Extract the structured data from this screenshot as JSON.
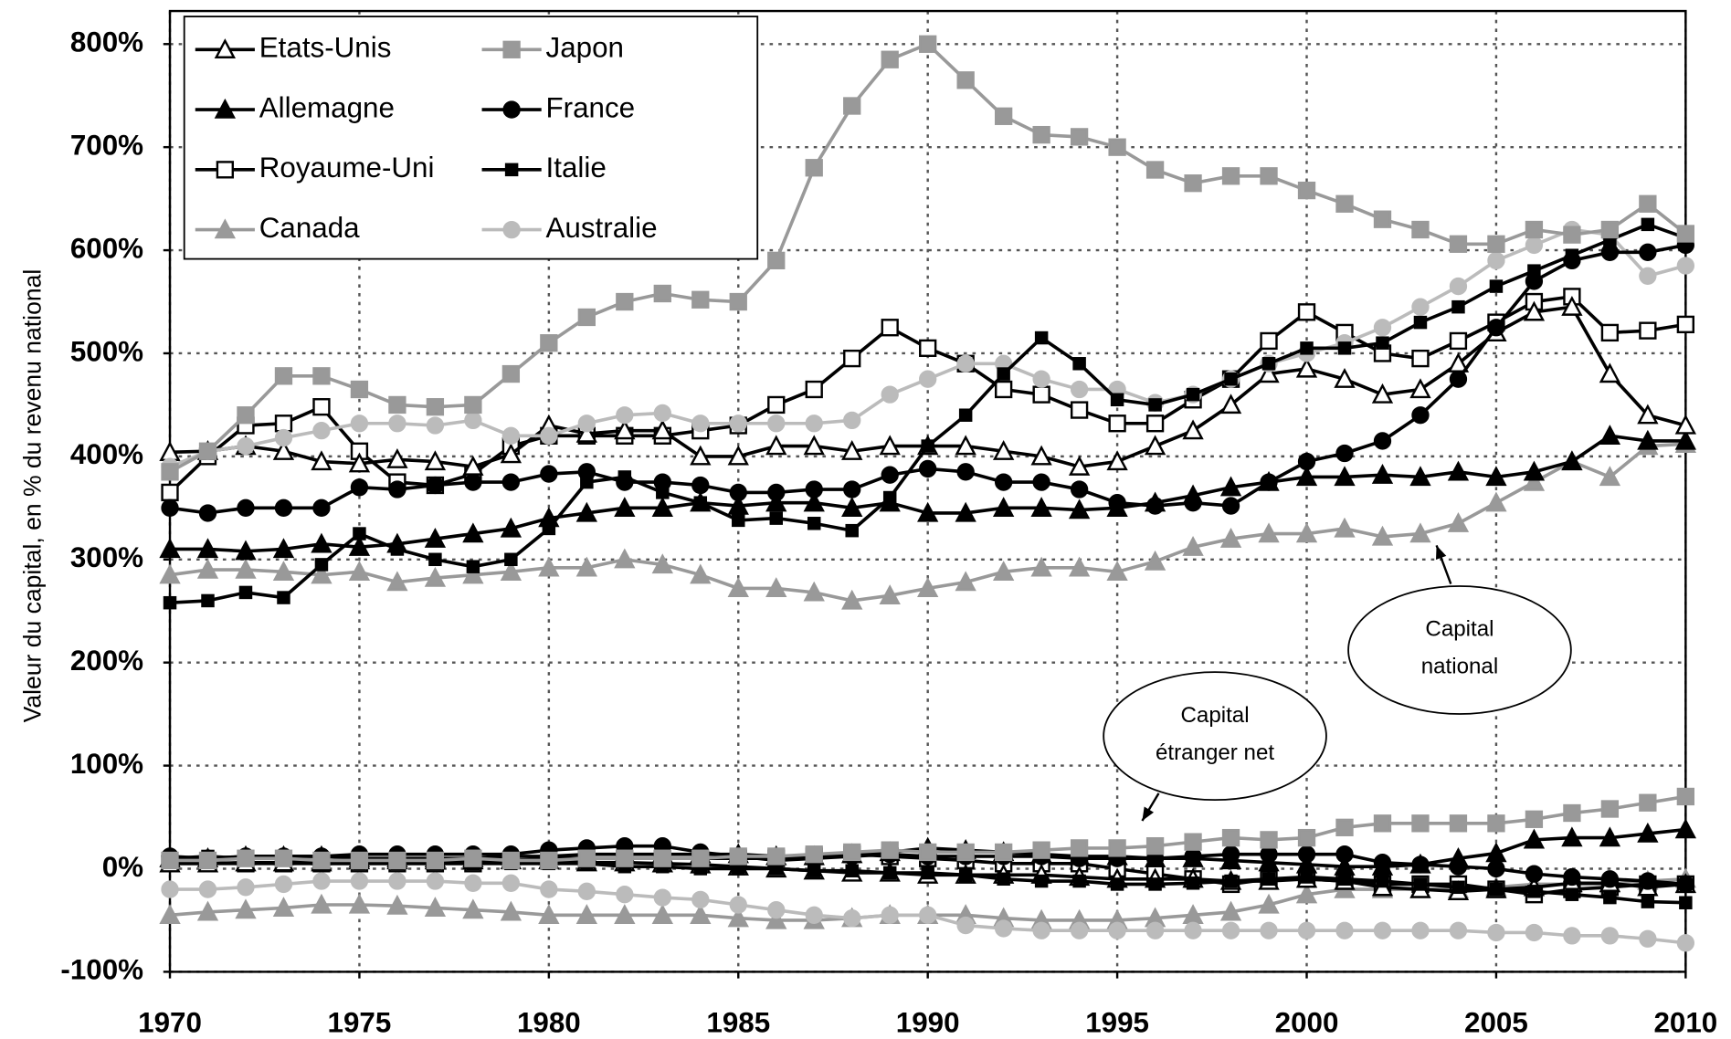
{
  "chart_data": {
    "type": "line",
    "y_label": "Valeur du capital, en % du revenu national",
    "x": [
      1970,
      1971,
      1972,
      1973,
      1974,
      1975,
      1976,
      1977,
      1978,
      1979,
      1980,
      1981,
      1982,
      1983,
      1984,
      1985,
      1986,
      1987,
      1988,
      1989,
      1990,
      1991,
      1992,
      1993,
      1994,
      1995,
      1996,
      1997,
      1998,
      1999,
      2000,
      2001,
      2002,
      2003,
      2004,
      2005,
      2006,
      2007,
      2008,
      2009,
      2010
    ],
    "xlim": [
      1970,
      2010
    ],
    "xticks": [
      1970,
      1975,
      1980,
      1985,
      1990,
      1995,
      2000,
      2005,
      2010
    ],
    "ylim": [
      -100,
      800
    ],
    "yticks": [
      {
        "value": -100,
        "label": "-100%"
      },
      {
        "value": 0,
        "label": "0%"
      },
      {
        "value": 100,
        "label": "100%"
      },
      {
        "value": 200,
        "label": "200%"
      },
      {
        "value": 300,
        "label": "300%"
      },
      {
        "value": 400,
        "label": "400%"
      },
      {
        "value": 500,
        "label": "500%"
      },
      {
        "value": 600,
        "label": "600%"
      },
      {
        "value": 700,
        "label": "700%"
      },
      {
        "value": 800,
        "label": "800%"
      }
    ],
    "grid": true,
    "legend": "top-left",
    "series": [
      {
        "name": "Etats-Unis",
        "color": "#000000",
        "marker": "triangle",
        "fill": "#ffffff",
        "values": [
          404,
          405,
          410,
          405,
          395,
          393,
          397,
          395,
          390,
          402,
          430,
          422,
          425,
          425,
          400,
          400,
          410,
          410,
          405,
          410,
          410,
          410,
          405,
          400,
          390,
          395,
          410,
          425,
          450,
          480,
          485,
          475,
          460,
          465,
          490,
          520,
          540,
          545,
          480,
          440,
          430
        ],
        "foreign_values": [
          5,
          5,
          6,
          6,
          6,
          8,
          8,
          8,
          8,
          8,
          8,
          6,
          6,
          5,
          4,
          2,
          0,
          -2,
          -4,
          -4,
          -6,
          -6,
          -6,
          -6,
          -8,
          -10,
          -10,
          -10,
          -12,
          -12,
          -10,
          -12,
          -18,
          -20,
          -22,
          -20,
          -18,
          -14,
          -14,
          -18,
          -15
        ]
      },
      {
        "name": "Allemagne",
        "color": "#000000",
        "marker": "triangle",
        "fill": "#000000",
        "values": [
          310,
          310,
          308,
          310,
          315,
          312,
          315,
          320,
          325,
          330,
          340,
          345,
          350,
          350,
          355,
          352,
          355,
          355,
          350,
          355,
          345,
          345,
          350,
          350,
          348,
          350,
          355,
          362,
          370,
          375,
          380,
          380,
          382,
          380,
          385,
          380,
          385,
          395,
          420,
          415,
          415
        ],
        "foreign_values": [
          10,
          10,
          12,
          12,
          12,
          10,
          10,
          10,
          10,
          12,
          12,
          14,
          14,
          14,
          14,
          14,
          12,
          12,
          14,
          16,
          20,
          18,
          16,
          14,
          12,
          12,
          10,
          10,
          8,
          6,
          4,
          2,
          2,
          4,
          10,
          15,
          28,
          30,
          30,
          34,
          38
        ]
      },
      {
        "name": "Royaume-Uni",
        "color": "#000000",
        "marker": "square",
        "fill": "#ffffff",
        "values": [
          365,
          400,
          430,
          432,
          448,
          405,
          375,
          372,
          383,
          410,
          420,
          420,
          420,
          420,
          425,
          430,
          450,
          465,
          495,
          525,
          505,
          490,
          465,
          460,
          445,
          432,
          432,
          455,
          475,
          512,
          540,
          520,
          500,
          495,
          512,
          530,
          550,
          555,
          520,
          522,
          528
        ],
        "foreign_values": [
          5,
          5,
          5,
          5,
          5,
          5,
          5,
          5,
          5,
          8,
          10,
          10,
          10,
          10,
          10,
          10,
          10,
          12,
          14,
          12,
          10,
          8,
          5,
          5,
          5,
          0,
          -5,
          -10,
          -15,
          -10,
          -10,
          -12,
          -15,
          -15,
          -15,
          -20,
          -25,
          -20,
          -18,
          -15,
          -15
        ]
      },
      {
        "name": "Canada",
        "color": "#999999",
        "marker": "triangle",
        "fill": "#999999",
        "values": [
          285,
          290,
          290,
          288,
          285,
          288,
          278,
          282,
          285,
          288,
          292,
          292,
          300,
          295,
          285,
          272,
          272,
          268,
          260,
          265,
          272,
          278,
          288,
          292,
          292,
          288,
          298,
          312,
          320,
          325,
          325,
          330,
          322,
          325,
          335,
          355,
          375,
          395,
          380,
          410,
          412
        ],
        "foreign_values": [
          -45,
          -42,
          -40,
          -38,
          -35,
          -35,
          -36,
          -38,
          -40,
          -42,
          -45,
          -45,
          -45,
          -45,
          -45,
          -48,
          -50,
          -50,
          -48,
          -45,
          -45,
          -45,
          -48,
          -50,
          -50,
          -50,
          -48,
          -45,
          -42,
          -35,
          -25,
          -20,
          -20,
          -20,
          -20,
          -18,
          -15,
          -15,
          -15,
          -12,
          -10
        ]
      },
      {
        "name": "Japon",
        "color": "#999999",
        "marker": "square",
        "fill": "#999999",
        "values": [
          385,
          405,
          440,
          478,
          478,
          465,
          450,
          448,
          450,
          480,
          510,
          535,
          550,
          558,
          552,
          550,
          590,
          680,
          740,
          785,
          800,
          765,
          730,
          712,
          710,
          700,
          678,
          665,
          672,
          672,
          658,
          645,
          630,
          620,
          606,
          606,
          620,
          615,
          620,
          645,
          616
        ],
        "foreign_values": [
          8,
          8,
          10,
          10,
          8,
          8,
          8,
          8,
          10,
          8,
          8,
          10,
          10,
          10,
          10,
          12,
          12,
          14,
          16,
          18,
          16,
          16,
          16,
          18,
          20,
          20,
          22,
          26,
          30,
          28,
          30,
          40,
          44,
          44,
          44,
          44,
          48,
          54,
          58,
          64,
          70
        ]
      },
      {
        "name": "France",
        "color": "#000000",
        "marker": "circle",
        "fill": "#000000",
        "values": [
          350,
          345,
          350,
          350,
          350,
          370,
          368,
          372,
          375,
          375,
          383,
          385,
          375,
          375,
          372,
          365,
          365,
          368,
          368,
          382,
          388,
          385,
          375,
          375,
          368,
          355,
          352,
          355,
          352,
          375,
          395,
          403,
          415,
          440,
          475,
          525,
          570,
          590,
          598,
          598,
          605
        ],
        "foreign_values": [
          12,
          10,
          12,
          12,
          12,
          14,
          14,
          14,
          14,
          14,
          18,
          20,
          22,
          22,
          16,
          12,
          8,
          10,
          12,
          14,
          12,
          12,
          12,
          12,
          10,
          10,
          10,
          12,
          14,
          14,
          14,
          14,
          6,
          4,
          2,
          0,
          -5,
          -8,
          -10,
          -12,
          -15
        ]
      },
      {
        "name": "Italie",
        "color": "#000000",
        "marker": "smallsquare",
        "fill": "#000000",
        "values": [
          258,
          260,
          268,
          263,
          295,
          325,
          310,
          300,
          293,
          300,
          330,
          375,
          380,
          365,
          355,
          338,
          340,
          335,
          328,
          360,
          410,
          440,
          480,
          515,
          490,
          455,
          450,
          460,
          475,
          490,
          505,
          505,
          510,
          530,
          545,
          565,
          580,
          595,
          610,
          625,
          612
        ],
        "foreign_values": [
          10,
          12,
          10,
          10,
          5,
          5,
          5,
          5,
          5,
          5,
          5,
          5,
          2,
          2,
          0,
          0,
          0,
          -2,
          -2,
          -4,
          -4,
          -6,
          -10,
          -12,
          -12,
          -15,
          -15,
          -14,
          -12,
          -10,
          -8,
          -10,
          -12,
          -15,
          -18,
          -20,
          -22,
          -25,
          -28,
          -32,
          -33
        ]
      },
      {
        "name": "Australie",
        "color": "#bbbbbb",
        "marker": "circle",
        "fill": "#bbbbbb",
        "values": [
          390,
          405,
          410,
          418,
          425,
          432,
          432,
          430,
          435,
          420,
          420,
          432,
          440,
          442,
          432,
          432,
          432,
          432,
          435,
          460,
          475,
          490,
          490,
          475,
          465,
          465,
          452,
          460,
          475,
          490,
          500,
          510,
          525,
          545,
          565,
          590,
          605,
          620,
          615,
          575,
          585
        ],
        "foreign_values": [
          -20,
          -20,
          -18,
          -15,
          -12,
          -12,
          -12,
          -12,
          -14,
          -14,
          -20,
          -22,
          -25,
          -28,
          -30,
          -35,
          -40,
          -45,
          -48,
          -45,
          -45,
          -55,
          -58,
          -60,
          -60,
          -60,
          -60,
          -60,
          -60,
          -60,
          -60,
          -60,
          -60,
          -60,
          -60,
          -62,
          -62,
          -65,
          -65,
          -68,
          -72
        ]
      }
    ],
    "annotations": [
      {
        "lines": [
          "Capital",
          "national"
        ]
      },
      {
        "lines": [
          "Capital",
          "étranger net"
        ]
      }
    ]
  }
}
